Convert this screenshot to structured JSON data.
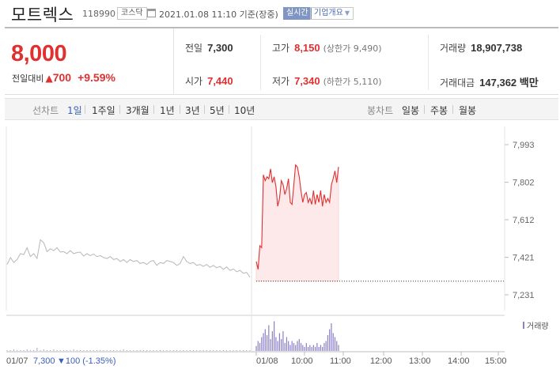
{
  "header": {
    "name": "모트렉스",
    "code": "118990",
    "market": "코스닥",
    "datetime": "2021.01.08 11:10 기준(장중)",
    "realtime_label": "실시간",
    "company_button": "기업개요"
  },
  "quote": {
    "price": "8,000",
    "diff_label": "전일대비",
    "diff_value": "700",
    "diff_pct": "+9.59%",
    "prev_close_label": "전일",
    "prev_close": "7,300",
    "high_label": "고가",
    "high": "8,150",
    "upper_limit": "(상한가 9,490)",
    "volume_label": "거래량",
    "volume": "18,907,738",
    "open_label": "시가",
    "open": "7,440",
    "low_label": "저가",
    "low": "7,340",
    "lower_limit": "(하한가 5,110)",
    "amount_label": "거래대금",
    "amount": "147,362 백만"
  },
  "tabs": {
    "line_chart_label": "선차트",
    "line_tabs": [
      "1일",
      "1주일",
      "3개월",
      "1년",
      "3년",
      "5년",
      "10년"
    ],
    "active_tab": "1일",
    "candle_chart_label": "봉차트",
    "candle_tabs": [
      "일봉",
      "주봉",
      "월봉"
    ]
  },
  "chart_data": {
    "type": "line",
    "title": "",
    "xlabel": "",
    "ylabel": "",
    "y_ticks": [
      "7,993",
      "7,802",
      "7,612",
      "7,421",
      "7,231"
    ],
    "ylim": [
      7231,
      7993
    ],
    "x_ticks": [
      "01/07",
      "01/08",
      "10:00",
      "11:00",
      "12:00",
      "13:00",
      "14:00",
      "15:00"
    ],
    "prev_close_reference": 7300,
    "series": [
      {
        "period": "01/07",
        "color": "#b8b8b8",
        "values": [
          7385,
          7420,
          7395,
          7410,
          7440,
          7435,
          7470,
          7425,
          7440,
          7415,
          7510,
          7495,
          7450,
          7465,
          7455,
          7470,
          7448,
          7450,
          7440,
          7455,
          7440,
          7445,
          7448,
          7428,
          7440,
          7430,
          7438,
          7425,
          7430,
          7420,
          7415,
          7425,
          7410,
          7415,
          7400,
          7410,
          7395,
          7410,
          7400,
          7405,
          7390,
          7395,
          7385,
          7400,
          7405,
          7380,
          7395,
          7390,
          7405,
          7400,
          7395,
          7380,
          7390,
          7425,
          7400,
          7390,
          7395,
          7380,
          7385,
          7375,
          7385,
          7370,
          7380,
          7368,
          7375,
          7360,
          7372,
          7355,
          7362,
          7348,
          7355,
          7340,
          7345,
          7320
        ]
      },
      {
        "period": "01/08",
        "color": "#e03030",
        "values": [
          7400,
          7360,
          7480,
          7470,
          7840,
          7810,
          7830,
          7820,
          7870,
          7800,
          7830,
          7780,
          7680,
          7720,
          7810,
          7790,
          7740,
          7770,
          7820,
          7700,
          7690,
          7790,
          7890,
          7880,
          7830,
          7760,
          7700,
          7740,
          7750,
          7700,
          7720,
          7690,
          7760,
          7690,
          7740,
          7700,
          7760,
          7680,
          7740,
          7700,
          7720,
          7700,
          7790,
          7820,
          7860,
          7800,
          7880
        ]
      }
    ],
    "volume": {
      "label": "거래량",
      "color": "#8b7fc6",
      "bars_0107": [
        1,
        1,
        2,
        1,
        1,
        1,
        2,
        1,
        1,
        4,
        1,
        2,
        1,
        1,
        2,
        1,
        1,
        1,
        1,
        1,
        2,
        1,
        1,
        1,
        1,
        1,
        1,
        1,
        1,
        1,
        1,
        1,
        1,
        1,
        1,
        2,
        1,
        1,
        1,
        1,
        1,
        1,
        1,
        1,
        1,
        1,
        1,
        1,
        1,
        1,
        1,
        1,
        1,
        1,
        1,
        1,
        1,
        1,
        1,
        1,
        1,
        1,
        1,
        1,
        1,
        1,
        1,
        1,
        1,
        1,
        1,
        1,
        1,
        1
      ],
      "bars_0108": [
        5,
        10,
        8,
        14,
        18,
        22,
        16,
        26,
        12,
        20,
        30,
        14,
        10,
        18,
        12,
        20,
        8,
        14,
        10,
        6,
        10,
        8,
        6,
        10,
        12,
        8,
        6,
        4,
        8,
        4,
        6,
        4,
        6,
        4,
        8,
        4,
        6,
        4,
        8,
        10,
        16,
        22,
        28,
        18,
        14,
        10,
        6
      ]
    }
  },
  "colors": {
    "up": "#e03030",
    "accent": "#3a5fb5",
    "fill": "#fde8ea"
  },
  "footer": {
    "prev_date": "01/07",
    "prev_price": "7,300",
    "prev_diff": "100",
    "prev_pct": "(-1.35%)"
  }
}
